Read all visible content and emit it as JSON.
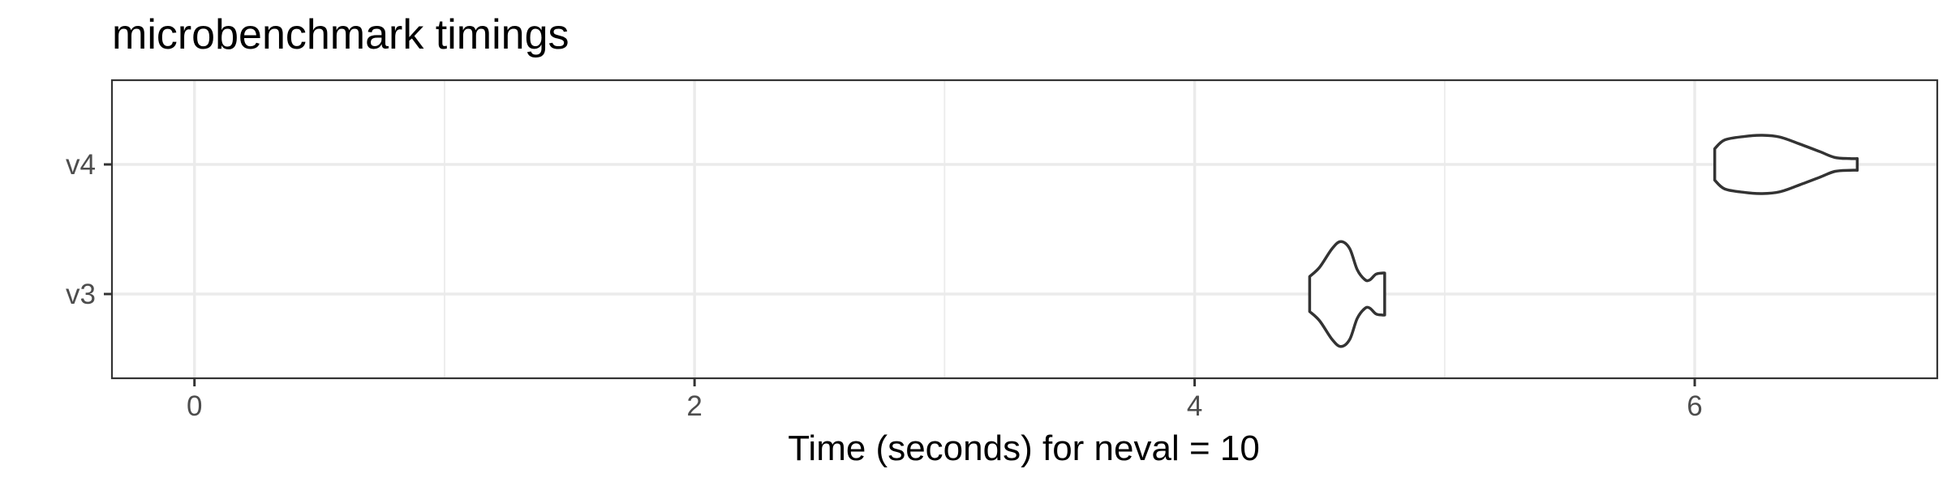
{
  "chart_data": {
    "type": "violin",
    "title": "microbenchmark timings",
    "xlabel": "Time (seconds) for neval = 10",
    "ylabel": "",
    "xlim": [
      -0.33,
      6.97
    ],
    "x_major_ticks": [
      0,
      2,
      4,
      6
    ],
    "x_minor_ticks": [
      1,
      3,
      5
    ],
    "grid": true,
    "categories": [
      "v3",
      "v4"
    ],
    "series": [
      {
        "name": "v3",
        "min": 4.46,
        "max": 4.76,
        "density_profile": [
          [
            4.46,
            0.3
          ],
          [
            4.5,
            0.46
          ],
          [
            4.55,
            0.78
          ],
          [
            4.585,
            0.9
          ],
          [
            4.62,
            0.78
          ],
          [
            4.65,
            0.42
          ],
          [
            4.68,
            0.25
          ],
          [
            4.7,
            0.24
          ],
          [
            4.725,
            0.34
          ],
          [
            4.75,
            0.36
          ],
          [
            4.76,
            0.36
          ]
        ]
      },
      {
        "name": "v4",
        "min": 6.08,
        "max": 6.65,
        "density_profile": [
          [
            6.08,
            0.27
          ],
          [
            6.12,
            0.42
          ],
          [
            6.2,
            0.48
          ],
          [
            6.27,
            0.5
          ],
          [
            6.34,
            0.47
          ],
          [
            6.42,
            0.35
          ],
          [
            6.5,
            0.22
          ],
          [
            6.56,
            0.12
          ],
          [
            6.62,
            0.1
          ],
          [
            6.65,
            0.1
          ]
        ]
      }
    ]
  }
}
